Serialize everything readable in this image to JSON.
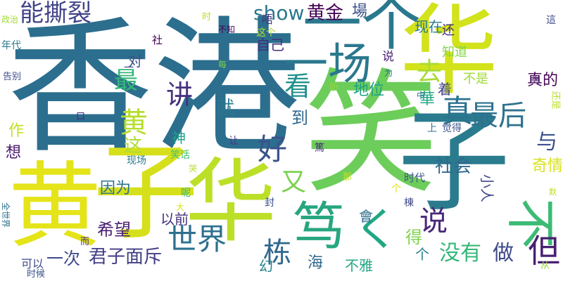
{
  "words": [
    {
      "text": "香港",
      "color": "#2c6e8e"
    },
    {
      "text": "笑",
      "color": "#6ccd5a"
    },
    {
      "text": "子",
      "color": "#2a7b8e"
    },
    {
      "text": "黄",
      "color": "#e4e419"
    },
    {
      "text": "子",
      "color": "#d6e01a"
    },
    {
      "text": "华",
      "color": "#bcdf27"
    },
    {
      "text": "华",
      "color": "#d2e21b"
    },
    {
      "text": "一个",
      "color": "#2a788e"
    },
    {
      "text": "一场",
      "color": "#2a788e"
    },
    {
      "text": "笃",
      "color": "#27a67f"
    },
    {
      "text": "く",
      "color": "#22a784"
    },
    {
      "text": "不",
      "color": "#3cbb75"
    },
    {
      "text": "讲",
      "color": "#46337e"
    },
    {
      "text": "最",
      "color": "#35b779"
    },
    {
      "text": "show",
      "color": "#2a788e"
    },
    {
      "text": "黄金",
      "color": "#440154"
    },
    {
      "text": "場",
      "color": "#3b528b"
    },
    {
      "text": "就",
      "color": "#2a788e"
    },
    {
      "text": "能撕裂",
      "color": "#404387"
    },
    {
      "text": "现在",
      "color": "#2a788e"
    },
    {
      "text": "去",
      "color": "#a8db34"
    },
    {
      "text": "真",
      "color": "#2c728e"
    },
    {
      "text": "最后",
      "color": "#2c728e"
    },
    {
      "text": "看",
      "color": "#21918c"
    },
    {
      "text": "好",
      "color": "#3b528b"
    },
    {
      "text": "又",
      "color": "#7ad151"
    },
    {
      "text": "世界",
      "color": "#2d708e"
    },
    {
      "text": "栋",
      "color": "#31688e"
    },
    {
      "text": "说",
      "color": "#482878"
    },
    {
      "text": "但",
      "color": "#482172"
    },
    {
      "text": "没有",
      "color": "#35b779"
    },
    {
      "text": "做",
      "color": "#3e4a89"
    },
    {
      "text": "社会",
      "color": "#31688e"
    },
    {
      "text": "与",
      "color": "#3b528b"
    },
    {
      "text": "奇情",
      "color": "#d8e219"
    },
    {
      "text": "真的",
      "color": "#440154"
    },
    {
      "text": "不是",
      "color": "#a0da39"
    },
    {
      "text": "知道",
      "color": "#86d549"
    },
    {
      "text": "華",
      "color": "#22a884"
    },
    {
      "text": "着",
      "color": "#404688"
    },
    {
      "text": "地位",
      "color": "#1fa187"
    },
    {
      "text": "自己",
      "color": "#472d7b"
    },
    {
      "text": "说",
      "color": "#482475"
    },
    {
      "text": "对",
      "color": "#3b528b"
    },
    {
      "text": "黄",
      "color": "#b5de2b"
    },
    {
      "text": "到",
      "color": "#31688e"
    },
    {
      "text": "这",
      "color": "#addc30"
    },
    {
      "text": "神",
      "color": "#1fa088"
    },
    {
      "text": "作",
      "color": "#c2df23"
    },
    {
      "text": "想",
      "color": "#481a6c"
    },
    {
      "text": "因为",
      "color": "#2c728e"
    },
    {
      "text": "希望",
      "color": "#481f70"
    },
    {
      "text": "以前",
      "color": "#46327e"
    },
    {
      "text": "一次",
      "color": "#3e4989"
    },
    {
      "text": "君子面斥",
      "color": "#433e85"
    },
    {
      "text": "不雅",
      "color": "#22a785"
    },
    {
      "text": "海",
      "color": "#31688e"
    },
    {
      "text": "得",
      "color": "#7fd34e"
    },
    {
      "text": "會",
      "color": "#2e6e8e"
    },
    {
      "text": "个",
      "color": "#277f8e"
    },
    {
      "text": "小人",
      "color": "#404588"
    },
    {
      "text": "可以",
      "color": "#3e4a89"
    },
    {
      "text": "时候",
      "color": "#3b528b"
    },
    {
      "text": "幻",
      "color": "#25858e"
    },
    {
      "text": "还",
      "color": "#472f7d"
    },
    {
      "text": "唔",
      "color": "#46317e"
    },
    {
      "text": "这个",
      "color": "#b0dd2f"
    },
    {
      "text": "不知",
      "color": "#440154"
    },
    {
      "text": "时",
      "color": "#bddf26"
    },
    {
      "text": "社",
      "color": "#440154"
    },
    {
      "text": "年代",
      "color": "#2a788e"
    },
    {
      "text": "政治",
      "color": "#a2da37"
    },
    {
      "text": "告别",
      "color": "#3e4c8a"
    },
    {
      "text": "每",
      "color": "#7ad151"
    },
    {
      "text": "一",
      "color": "#443983"
    },
    {
      "text": "听",
      "color": "#90d743"
    },
    {
      "text": "为",
      "color": "#2c718e"
    },
    {
      "text": "中",
      "color": "#2c728e"
    },
    {
      "text": "上",
      "color": "#2e6f8e"
    },
    {
      "text": "觉得",
      "color": "#3b528b"
    },
    {
      "text": "还是",
      "color": "#bade28"
    },
    {
      "text": "为",
      "color": "#482677"
    },
    {
      "text": "這",
      "color": "#3e4c8a"
    },
    {
      "text": "口",
      "color": "#482878"
    },
    {
      "text": "现场",
      "color": "#2a788e"
    },
    {
      "text": "让",
      "color": "#453882"
    },
    {
      "text": "笑话",
      "color": "#44bf70"
    },
    {
      "text": "哭",
      "color": "#b8de29"
    },
    {
      "text": "篤",
      "color": "#472c7a"
    },
    {
      "text": "那",
      "color": "#c0df25"
    },
    {
      "text": "时代",
      "color": "#3b528b"
    },
    {
      "text": "呢",
      "color": "#30b47d"
    },
    {
      "text": "大",
      "color": "#d5e21a"
    },
    {
      "text": "封",
      "color": "#3b528b"
    },
    {
      "text": "棟",
      "color": "#3e4989"
    },
    {
      "text": "个",
      "color": "#e1e418"
    },
    {
      "text": "全世界",
      "color": "#2c728e"
    },
    {
      "text": "而",
      "color": "#46307e"
    },
    {
      "text": "从",
      "color": "#9bd93c"
    },
    {
      "text": "默",
      "color": "#bddf26"
    }
  ]
}
